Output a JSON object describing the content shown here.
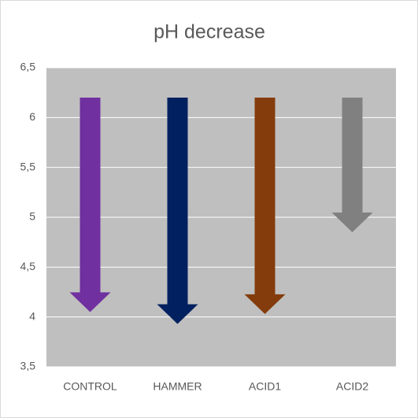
{
  "chart_data": {
    "type": "arrow",
    "title": "pH decrease",
    "categories": [
      "CONTROL",
      "HAMMER",
      "ACID1",
      "ACID2"
    ],
    "start": [
      6.2,
      6.2,
      6.2,
      6.2
    ],
    "values": [
      4.05,
      3.93,
      4.03,
      4.85
    ],
    "colors": [
      "#7030a0",
      "#002060",
      "#843c0c",
      "#808080"
    ],
    "ylim": [
      3.5,
      6.5
    ],
    "yticks": [
      {
        "value": 3.5,
        "label": "3,5"
      },
      4,
      {
        "value": 4.5,
        "label": "4,5"
      },
      5,
      {
        "value": 5.5,
        "label": "5,5"
      },
      6,
      {
        "value": 6.5,
        "label": "6,5"
      }
    ],
    "grid": true
  }
}
